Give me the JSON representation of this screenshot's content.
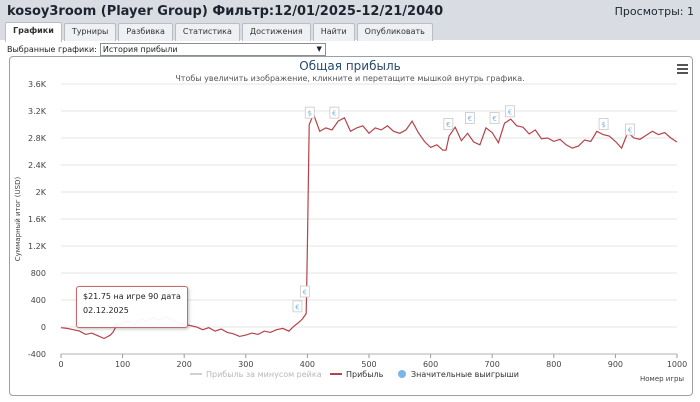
{
  "header": {
    "title": "kosoy3room (Player Group) Фильтр:12/01/2025-12/21/2040",
    "views": "Просмотры: 1"
  },
  "tabs": [
    "Графики",
    "Турниры",
    "Разбивка",
    "Статистика",
    "Достижения",
    "Найти",
    "Опубликовать"
  ],
  "graph_select": {
    "label": "Выбранные графики:",
    "value": "История прибыли"
  },
  "tooltip": {
    "line1": "$21.75 на игре 90 дата",
    "line2": "02.12.2025"
  },
  "colors": {
    "profit": "#b5424a",
    "rake": "#d0d0d0",
    "wins": "#7cb5ec"
  },
  "chart_data": {
    "type": "line",
    "title": "Общая прибыль",
    "subtitle": "Чтобы увеличить изображение, кликните и перетащите мышкой внутрь графика.",
    "xlabel": "Номер игры",
    "ylabel": "Суммарный итог (USD)",
    "xlim": [
      0,
      1000
    ],
    "ylim": [
      -400,
      3600
    ],
    "x_ticks": [
      "0",
      "100",
      "200",
      "300",
      "400",
      "500",
      "600",
      "700",
      "800",
      "900",
      "1000"
    ],
    "y_ticks": [
      "-400",
      "0",
      "400",
      "800",
      "1.2K",
      "1.6K",
      "2K",
      "2.4K",
      "2.8K",
      "3.2K",
      "3.6K"
    ],
    "grid": true,
    "legend": [
      "Прибыль за минусом рейка",
      "Прибыль",
      "Значительные выигрыши"
    ],
    "series": [
      {
        "name": "Прибыль",
        "x": [
          0,
          10,
          20,
          30,
          40,
          50,
          60,
          70,
          80,
          85,
          90,
          100,
          110,
          120,
          130,
          140,
          150,
          160,
          170,
          180,
          190,
          200,
          210,
          220,
          230,
          240,
          250,
          260,
          270,
          280,
          290,
          300,
          310,
          320,
          330,
          340,
          350,
          360,
          370,
          378,
          385,
          392,
          398,
          400,
          403,
          410,
          420,
          430,
          440,
          450,
          460,
          470,
          480,
          490,
          500,
          510,
          520,
          530,
          540,
          550,
          560,
          570,
          580,
          590,
          600,
          610,
          620,
          625,
          630,
          640,
          650,
          660,
          670,
          680,
          690,
          700,
          710,
          720,
          730,
          740,
          750,
          760,
          770,
          780,
          790,
          800,
          810,
          820,
          830,
          840,
          850,
          860,
          870,
          880,
          890,
          900,
          910,
          920,
          930,
          940,
          950,
          960,
          970,
          980,
          990,
          1000
        ],
        "y": [
          -10,
          -20,
          -40,
          -60,
          -110,
          -90,
          -130,
          -170,
          -120,
          -70,
          21.75,
          60,
          90,
          40,
          120,
          80,
          140,
          100,
          150,
          110,
          60,
          40,
          20,
          0,
          -40,
          -10,
          -60,
          -30,
          -80,
          -100,
          -140,
          -120,
          -90,
          -110,
          -60,
          -80,
          -40,
          -20,
          -60,
          10,
          60,
          120,
          200,
          1200,
          3000,
          3150,
          2900,
          2950,
          2920,
          3050,
          3100,
          2900,
          2950,
          2980,
          2870,
          2950,
          2920,
          2980,
          2900,
          2870,
          2920,
          3050,
          2880,
          2750,
          2660,
          2700,
          2620,
          2620,
          2830,
          2960,
          2760,
          2870,
          2740,
          2700,
          2950,
          2880,
          2730,
          3020,
          3080,
          2980,
          2960,
          2860,
          2920,
          2790,
          2800,
          2750,
          2780,
          2700,
          2650,
          2680,
          2770,
          2750,
          2900,
          2850,
          2830,
          2750,
          2650,
          2880,
          2800,
          2780,
          2840,
          2900,
          2850,
          2880,
          2800,
          2740
        ]
      }
    ],
    "markers": [
      {
        "x": 383,
        "y": 180,
        "label": "€"
      },
      {
        "x": 395,
        "y": 400,
        "label": "€"
      },
      {
        "x": 403,
        "y": 3050,
        "label": "$"
      },
      {
        "x": 443,
        "y": 3050,
        "label": "€"
      },
      {
        "x": 628,
        "y": 2880,
        "label": "€"
      },
      {
        "x": 663,
        "y": 2970,
        "label": "€"
      },
      {
        "x": 703,
        "y": 2970,
        "label": "€"
      },
      {
        "x": 728,
        "y": 3070,
        "label": "€"
      },
      {
        "x": 880,
        "y": 2880,
        "label": "$"
      },
      {
        "x": 923,
        "y": 2800,
        "label": "€"
      }
    ]
  }
}
